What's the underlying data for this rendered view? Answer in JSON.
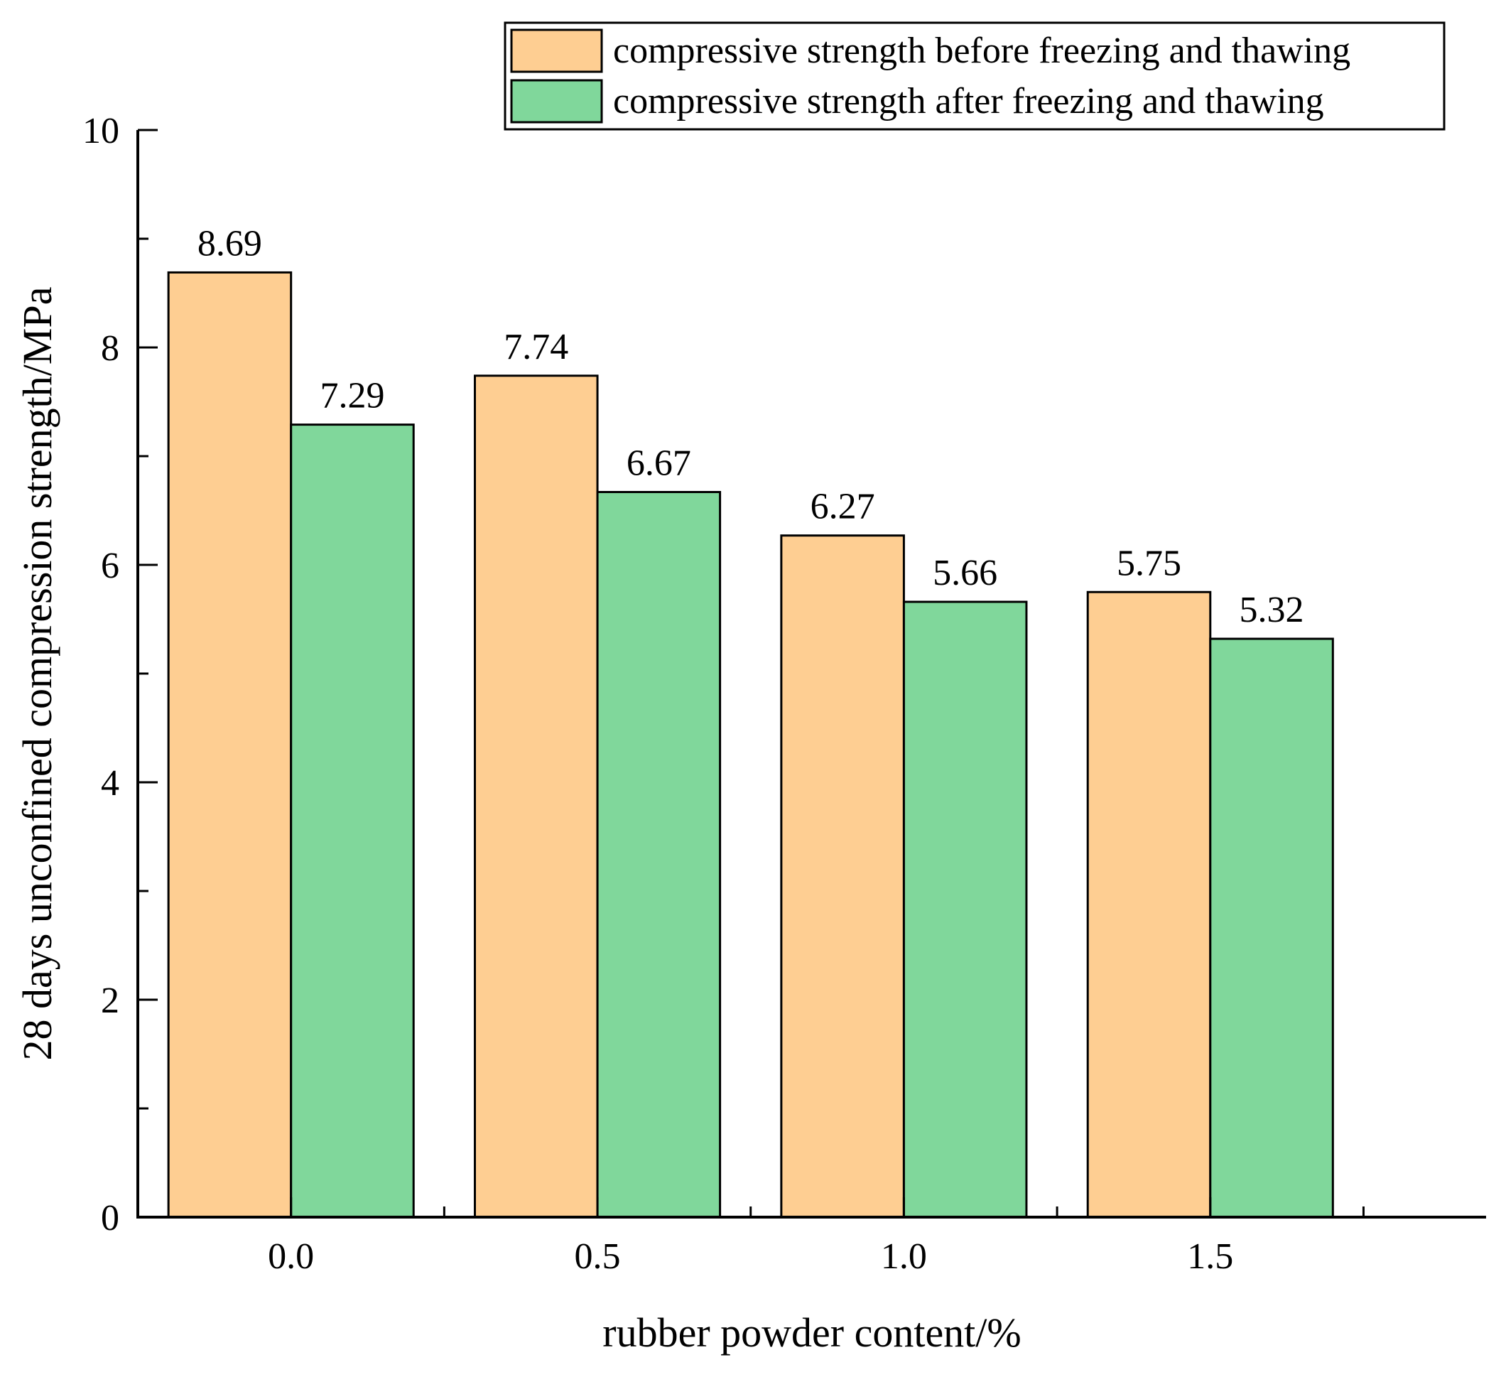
{
  "chart_data": {
    "type": "bar",
    "title": "",
    "xlabel": "rubber powder content/%",
    "ylabel": "28 days unconfined compression strength/MPa",
    "categories": [
      "0.0",
      "0.5",
      "1.0",
      "1.5"
    ],
    "ylim": [
      0,
      10
    ],
    "yticks": [
      0,
      2,
      4,
      6,
      8,
      10
    ],
    "ytick_labels": [
      "0",
      "2",
      "4",
      "6",
      "8",
      "10"
    ],
    "grid": false,
    "legend_position": "top-right",
    "series": [
      {
        "name": "compressive strength before freezing and thawing",
        "color": "#FECE92",
        "values": [
          8.69,
          7.74,
          6.27,
          5.75
        ],
        "labels": [
          "8.69",
          "7.74",
          "6.27",
          "5.75"
        ]
      },
      {
        "name": "compressive strength after freezing and thawing",
        "color": "#80D79B",
        "values": [
          7.29,
          6.67,
          5.66,
          5.32
        ],
        "labels": [
          "7.29",
          "6.67",
          "5.66",
          "5.32"
        ]
      }
    ]
  }
}
